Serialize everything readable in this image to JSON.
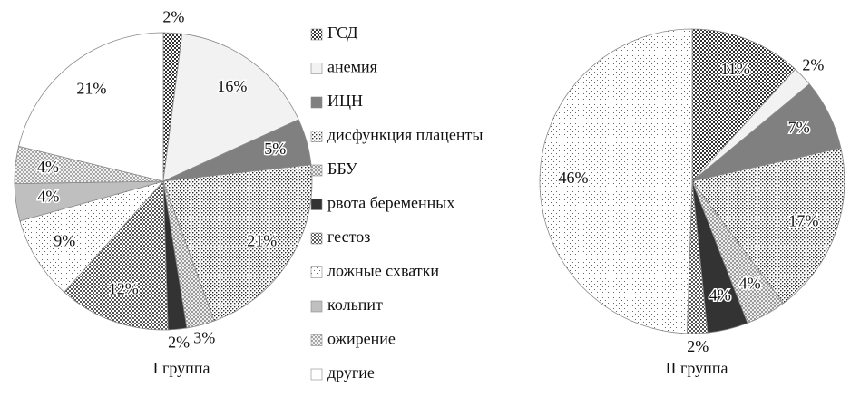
{
  "chart_data": {
    "type": "pie",
    "categories": [
      "ГСД",
      "анемия",
      "ИЦН",
      "дисфункция плаценты",
      "ББУ",
      "рвота беременных",
      "гестоз",
      "ложные схватки",
      "кольпит",
      "ожирение",
      "другие"
    ],
    "colors": [
      "#333333",
      "#f2f2f2",
      "#808080",
      "#2a2a2a",
      "#777777",
      "#333333",
      "#555555",
      "#666666",
      "#bfbfbf",
      "#888888",
      "#ffffff"
    ],
    "patterns": [
      "checker",
      "solid",
      "solid",
      "dense-dots",
      "cross",
      "solid",
      "checker",
      "dots",
      "solid",
      "cross",
      "solid"
    ],
    "series": [
      {
        "name": "I группа",
        "values": [
          2,
          16,
          5,
          21,
          3,
          2,
          12,
          9,
          4,
          4,
          21
        ],
        "value_labels": [
          "2%",
          "16%",
          "5%",
          "21%",
          "3%",
          "2%",
          "12%",
          "9%",
          "4%",
          "4%",
          "21%"
        ]
      },
      {
        "name": "II группа",
        "values": [
          11,
          2,
          7,
          17,
          4,
          4,
          2,
          46,
          null,
          null,
          null
        ],
        "value_labels": [
          "11%",
          "2%",
          "7%",
          "17%",
          "4%",
          "4%",
          "2%",
          "46%",
          null,
          null,
          null
        ]
      }
    ]
  }
}
